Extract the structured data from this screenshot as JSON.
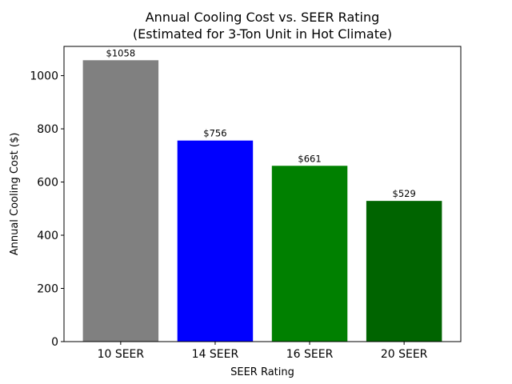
{
  "chart_data": {
    "type": "bar",
    "title": "Annual Cooling Cost vs. SEER Rating",
    "subtitle": "(Estimated for 3-Ton Unit in Hot Climate)",
    "xlabel": "SEER Rating",
    "ylabel": "Annual Cooling Cost ($)",
    "categories": [
      "10 SEER",
      "14 SEER",
      "16 SEER",
      "20 SEER"
    ],
    "values": [
      1058,
      756,
      661,
      529
    ],
    "data_labels": [
      "$1058",
      "$756",
      "$661",
      "$529"
    ],
    "colors": [
      "#808080",
      "#0000ff",
      "#008000",
      "#006400"
    ],
    "ylim": [
      0,
      1110
    ],
    "yticks": [
      0,
      200,
      400,
      600,
      800,
      1000
    ],
    "ytick_labels": [
      "0",
      "200",
      "400",
      "600",
      "800",
      "1000"
    ],
    "grid": false,
    "legend": "none"
  }
}
